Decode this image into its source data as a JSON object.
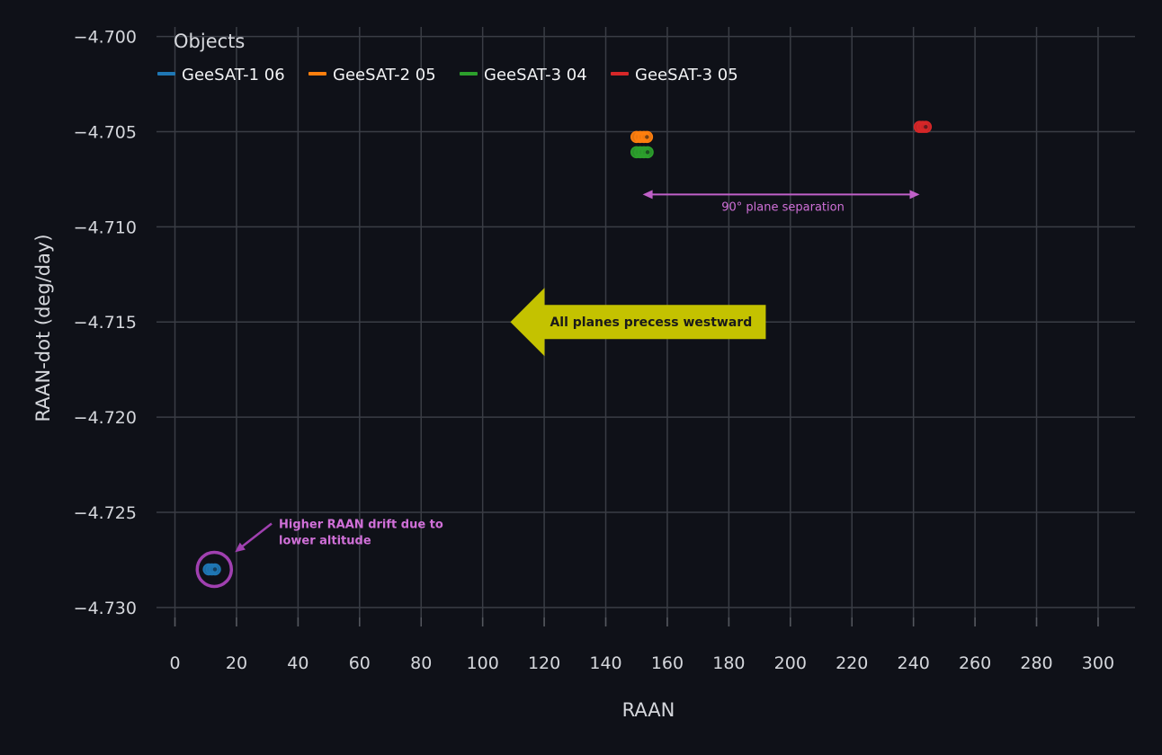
{
  "chart_data": {
    "type": "scatter",
    "xlabel": "RAAN",
    "ylabel": "RAAN-dot (deg/day)",
    "xlim": [
      -6,
      312
    ],
    "ylim": [
      -4.731,
      -4.6995
    ],
    "xticks": [
      0,
      20,
      40,
      60,
      80,
      100,
      120,
      140,
      160,
      180,
      200,
      220,
      240,
      260,
      280,
      300
    ],
    "xtick_labels": [
      "0",
      "20",
      "40",
      "60",
      "80",
      "100",
      "120",
      "140",
      "160",
      "180",
      "200",
      "220",
      "240",
      "260",
      "280",
      "300"
    ],
    "yticks": [
      -4.7,
      -4.705,
      -4.71,
      -4.715,
      -4.72,
      -4.725,
      -4.73
    ],
    "ytick_labels": [
      "−4.700",
      "−4.705",
      "−4.710",
      "−4.715",
      "−4.720",
      "−4.725",
      "−4.730"
    ],
    "grid": true,
    "legend": {
      "title": "Objects",
      "placement": "top-left"
    },
    "series": [
      {
        "name": "GeeSAT-1 06",
        "color": "#1f77b4",
        "points": [
          {
            "x": 11.0,
            "y": -4.728
          },
          {
            "x": 12.0,
            "y": -4.728
          },
          {
            "x": 13.0,
            "y": -4.728
          }
        ]
      },
      {
        "name": "GeeSAT-2 05",
        "color": "#ff7f0e",
        "points": [
          {
            "x": 150.0,
            "y": -4.70528
          },
          {
            "x": 151.2,
            "y": -4.70528
          },
          {
            "x": 152.4,
            "y": -4.70528
          },
          {
            "x": 153.4,
            "y": -4.70528
          }
        ]
      },
      {
        "name": "GeeSAT-3 04",
        "color": "#2ca02c",
        "points": [
          {
            "x": 150.0,
            "y": -4.70608
          },
          {
            "x": 151.2,
            "y": -4.70608
          },
          {
            "x": 152.4,
            "y": -4.70608
          },
          {
            "x": 153.6,
            "y": -4.70608
          }
        ]
      },
      {
        "name": "GeeSAT-3 05",
        "color": "#d62728",
        "points": [
          {
            "x": 242.0,
            "y": -4.70475
          },
          {
            "x": 243.0,
            "y": -4.70475
          },
          {
            "x": 244.0,
            "y": -4.70475
          }
        ]
      }
    ],
    "annotations": [
      {
        "id": "plane-separation",
        "text": "90° plane separation",
        "color": "#c060c8",
        "from": {
          "x": 152,
          "y": -4.7083
        },
        "to": {
          "x": 242,
          "y": -4.7083
        }
      },
      {
        "id": "precess-westward",
        "text": "All planes precess westward",
        "color": "#c4c200",
        "from": {
          "x": 192,
          "y": -4.715
        },
        "to": {
          "x": 109,
          "y": -4.715
        }
      },
      {
        "id": "lower-altitude",
        "text_lines": [
          "Higher RAAN drift due to",
          "lower altitude"
        ],
        "color": "#d070d8",
        "highlight": {
          "x": 12.5,
          "y": -4.728
        },
        "from": {
          "x": 32,
          "y": -4.7255
        },
        "to": {
          "x": 19.5,
          "y": -4.7271
        }
      }
    ]
  }
}
